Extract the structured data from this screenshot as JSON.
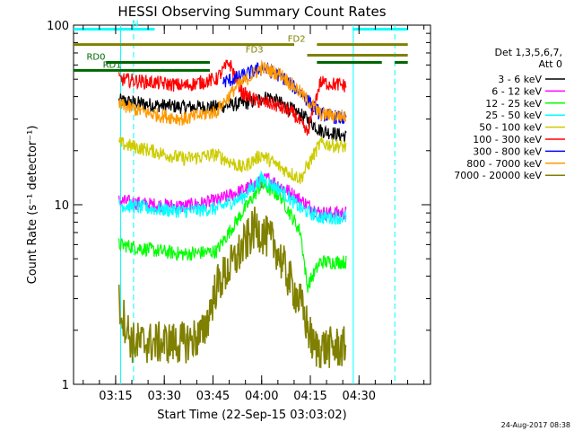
{
  "chart_data": {
    "type": "line",
    "title": "HESSI Observing Summary Count Rates",
    "xlabel": "Start Time (22-Sep-15 03:03:02)",
    "ylabel": "Count Rate (s⁻¹ detector⁻¹)",
    "yscale": "log",
    "ylim": [
      1,
      100
    ],
    "xlim": [
      0,
      110
    ],
    "x_unit": "minutes after 03:03:02",
    "xticks": [
      {
        "x": 12.97,
        "label": "03:15"
      },
      {
        "x": 27.97,
        "label": "03:30"
      },
      {
        "x": 42.97,
        "label": "03:45"
      },
      {
        "x": 57.97,
        "label": "04:00"
      },
      {
        "x": 72.97,
        "label": "04:15"
      },
      {
        "x": 87.97,
        "label": "04:30"
      }
    ],
    "yticks": [
      {
        "y": 1,
        "label": "1"
      },
      {
        "y": 10,
        "label": "10"
      },
      {
        "y": 100,
        "label": "100"
      }
    ],
    "legend_title": [
      "Det 1,3,5,6,7,",
      "Att 0"
    ],
    "legend_placement": "right",
    "series": [
      {
        "name": "3 - 6 keV",
        "color": "#000000",
        "points": [
          [
            14,
            38
          ],
          [
            24,
            36
          ],
          [
            34,
            35
          ],
          [
            44,
            35
          ],
          [
            54,
            37
          ],
          [
            60,
            40
          ],
          [
            66,
            35
          ],
          [
            72,
            30
          ],
          [
            76,
            26
          ],
          [
            84,
            24
          ]
        ]
      },
      {
        "name": "6 - 12 keV",
        "color": "#ff00ff",
        "points": [
          [
            14,
            10.5
          ],
          [
            24,
            10
          ],
          [
            34,
            9.8
          ],
          [
            44,
            10.5
          ],
          [
            52,
            12
          ],
          [
            60,
            14
          ],
          [
            66,
            12
          ],
          [
            72,
            10
          ],
          [
            76,
            9
          ],
          [
            84,
            9
          ]
        ]
      },
      {
        "name": "12 - 25 keV",
        "color": "#00ff00",
        "points": [
          [
            14,
            6
          ],
          [
            24,
            5.6
          ],
          [
            34,
            5.3
          ],
          [
            44,
            5.5
          ],
          [
            50,
            8
          ],
          [
            58,
            13
          ],
          [
            64,
            11
          ],
          [
            70,
            7
          ],
          [
            72,
            3.5
          ],
          [
            76,
            4.8
          ],
          [
            84,
            4.8
          ]
        ]
      },
      {
        "name": "25 - 50 keV",
        "color": "#00ffff",
        "points": [
          [
            14,
            10
          ],
          [
            24,
            9.5
          ],
          [
            34,
            9.2
          ],
          [
            44,
            9.5
          ],
          [
            52,
            11
          ],
          [
            58,
            14
          ],
          [
            64,
            12
          ],
          [
            70,
            9.5
          ],
          [
            76,
            8.5
          ],
          [
            84,
            8.5
          ]
        ]
      },
      {
        "name": "50 - 100 keV",
        "color": "#cccc00",
        "points": [
          [
            14,
            22
          ],
          [
            24,
            20
          ],
          [
            34,
            18
          ],
          [
            44,
            19
          ],
          [
            52,
            16
          ],
          [
            58,
            19
          ],
          [
            64,
            16
          ],
          [
            70,
            14
          ],
          [
            76,
            22
          ],
          [
            84,
            21
          ]
        ]
      },
      {
        "name": "100 - 300 keV",
        "color": "#ff0000",
        "points": [
          [
            14,
            50
          ],
          [
            24,
            48
          ],
          [
            34,
            46
          ],
          [
            44,
            50
          ],
          [
            48,
            62
          ],
          [
            52,
            42
          ],
          [
            56,
            38
          ],
          [
            62,
            36
          ],
          [
            68,
            32
          ],
          [
            72,
            25
          ],
          [
            76,
            48
          ],
          [
            84,
            46
          ]
        ]
      },
      {
        "name": "300 - 800 keV",
        "color": "#0000ff",
        "points": [
          [
            46,
            48
          ],
          [
            52,
            52
          ],
          [
            58,
            58
          ],
          [
            64,
            52
          ],
          [
            70,
            42
          ],
          [
            76,
            32
          ],
          [
            84,
            30
          ]
        ]
      },
      {
        "name": "800 - 7000 keV",
        "color": "#ff9900",
        "points": [
          [
            14,
            36
          ],
          [
            24,
            32
          ],
          [
            34,
            30
          ],
          [
            44,
            33
          ],
          [
            50,
            45
          ],
          [
            58,
            58
          ],
          [
            64,
            53
          ],
          [
            70,
            42
          ],
          [
            76,
            32
          ],
          [
            84,
            31
          ]
        ]
      },
      {
        "name": "7000 - 20000 keV",
        "color": "#808000",
        "points": [
          [
            14,
            2.8
          ],
          [
            18,
            1.7
          ],
          [
            24,
            1.7
          ],
          [
            34,
            1.7
          ],
          [
            40,
            1.9
          ],
          [
            44,
            3.5
          ],
          [
            50,
            5
          ],
          [
            56,
            7.5
          ],
          [
            62,
            6
          ],
          [
            66,
            4
          ],
          [
            70,
            2.8
          ],
          [
            74,
            1.6
          ],
          [
            84,
            1.6
          ]
        ]
      }
    ],
    "annotations": {
      "N": {
        "label": "N",
        "color": "#00ffff",
        "y": 95,
        "spans": [
          [
            0,
            25
          ],
          [
            86,
            103
          ]
        ]
      },
      "FD2": {
        "label": "FD2",
        "color": "#808000",
        "y": 78,
        "spans": [
          [
            0,
            68
          ],
          [
            75,
            103
          ]
        ]
      },
      "FD3": {
        "label": "FD3",
        "color": "#808000",
        "y": 68,
        "spans": [
          [
            72,
            103
          ]
        ]
      },
      "RD0": {
        "label": "RD0",
        "color": "#006600",
        "y": 62,
        "spans": [
          [
            10,
            42
          ],
          [
            75,
            95
          ],
          [
            99,
            103
          ]
        ]
      },
      "RD1": {
        "label": "RD1",
        "color": "#006600",
        "y": 56,
        "spans": [
          [
            0,
            42
          ]
        ]
      }
    },
    "vlines_solid": [
      14.5,
      86.2
    ],
    "vlines_dashed": [
      18.5,
      99.0
    ]
  },
  "timestamp": "24-Aug-2017 08:38"
}
